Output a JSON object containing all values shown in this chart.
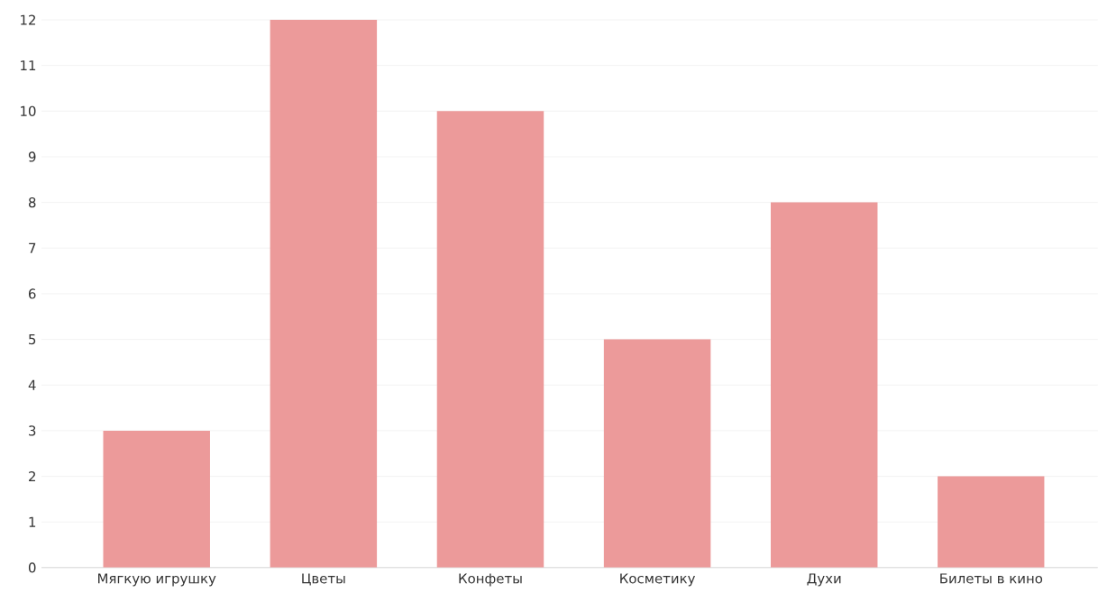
{
  "chart_data": {
    "type": "bar",
    "categories": [
      "Мягкую игрушку",
      "Цветы",
      "Конфеты",
      "Косметику",
      "Духи",
      "Билеты в кино"
    ],
    "values": [
      3,
      12,
      10,
      5,
      8,
      2
    ],
    "color": "#ec9a9a",
    "ylim": [
      0,
      12
    ],
    "yticks": [
      0,
      1,
      2,
      3,
      4,
      5,
      6,
      7,
      8,
      9,
      10,
      11,
      12
    ],
    "grid": "y"
  }
}
